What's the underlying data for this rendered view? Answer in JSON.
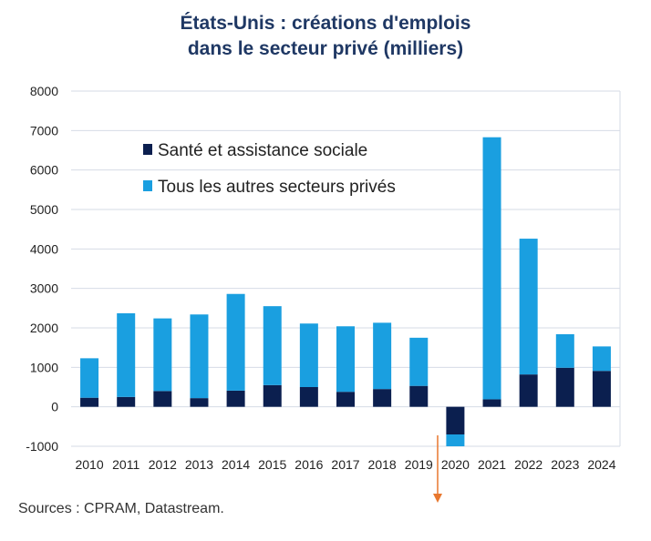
{
  "title_line1": "États-Unis : créations d'emplois",
  "title_line2": "dans le secteur privé (milliers)",
  "source": "Sources : CPRAM, Datastream.",
  "colors": {
    "health": "#0b1f4f",
    "others": "#1a9fe0",
    "arrow": "#e8772e",
    "grid": "#d6dbe6"
  },
  "chart_data": {
    "type": "bar",
    "stacked": true,
    "categories": [
      "2010",
      "2011",
      "2012",
      "2013",
      "2014",
      "2015",
      "2016",
      "2017",
      "2018",
      "2019",
      "2020",
      "2021",
      "2022",
      "2023",
      "2024"
    ],
    "series": [
      {
        "name": "Santé et assistance sociale",
        "values": [
          230,
          250,
          400,
          220,
          410,
          550,
          500,
          380,
          450,
          530,
          -700,
          190,
          820,
          990,
          910
        ]
      },
      {
        "name": "Tous les autres secteurs privés",
        "values": [
          1000,
          2120,
          1840,
          2120,
          2450,
          2000,
          1610,
          1660,
          1680,
          1220,
          -300,
          6640,
          3440,
          850,
          620
        ]
      }
    ],
    "ylim": [
      -1000,
      8000
    ],
    "yticks": [
      -1000,
      0,
      1000,
      2000,
      3000,
      4000,
      5000,
      6000,
      7000,
      8000
    ],
    "grid": true,
    "legend": "top-left"
  }
}
